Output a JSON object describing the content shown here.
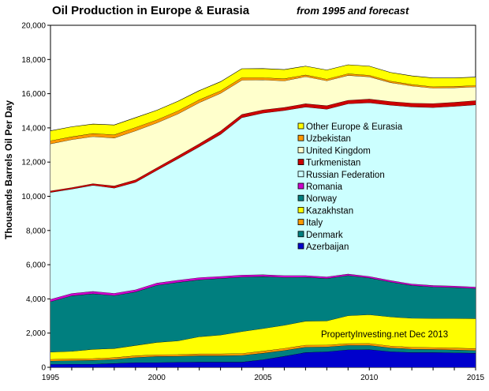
{
  "chart_data": {
    "type": "area",
    "title": "Oil Production in Europe & Eurasia",
    "subtitle": "from 1995 and forecast",
    "xlabel": "",
    "ylabel": "Thousands Barrels Oil Per Day",
    "ylim": [
      0,
      20000
    ],
    "xlim": [
      1995,
      2015
    ],
    "yticks": [
      "0",
      "2,000",
      "4,000",
      "6,000",
      "8,000",
      "10,000",
      "12,000",
      "14,000",
      "16,000",
      "18,000",
      "20,000"
    ],
    "xticks": [
      "1995",
      "2000",
      "2005",
      "2010",
      "2015"
    ],
    "annotation": "PropertyInvesting.net  Dec 2013",
    "legend_position": "center-right",
    "grid": false,
    "x": [
      1995,
      1996,
      1997,
      1998,
      1999,
      2000,
      2001,
      2002,
      2003,
      2004,
      2005,
      2006,
      2007,
      2008,
      2009,
      2010,
      2011,
      2012,
      2013,
      2014,
      2015
    ],
    "series": [
      {
        "name": "Azerbaijan",
        "color": "#0000cc",
        "values": [
          180,
          185,
          185,
          230,
          280,
          280,
          300,
          310,
          310,
          310,
          450,
          650,
          870,
          915,
          1030,
          1040,
          920,
          870,
          870,
          850,
          830
        ]
      },
      {
        "name": "Denmark",
        "color": "#007f7f",
        "values": [
          190,
          210,
          230,
          240,
          300,
          360,
          350,
          370,
          370,
          390,
          380,
          340,
          310,
          280,
          260,
          250,
          220,
          200,
          180,
          170,
          160
        ]
      },
      {
        "name": "Italy",
        "color": "#ff9900",
        "values": [
          100,
          100,
          100,
          100,
          100,
          100,
          100,
          110,
          110,
          110,
          120,
          120,
          120,
          110,
          100,
          110,
          110,
          110,
          110,
          110,
          110
        ]
      },
      {
        "name": "Kazakhstan",
        "color": "#ffff00",
        "values": [
          420,
          440,
          540,
          530,
          600,
          720,
          800,
          1000,
          1100,
          1280,
          1320,
          1350,
          1400,
          1410,
          1630,
          1680,
          1700,
          1690,
          1700,
          1730,
          1750
        ]
      },
      {
        "name": "Norway",
        "color": "#007f7f",
        "values": [
          2950,
          3250,
          3250,
          3100,
          3130,
          3340,
          3420,
          3330,
          3310,
          3190,
          3040,
          2800,
          2570,
          2480,
          2350,
          2150,
          2040,
          1920,
          1840,
          1810,
          1760
        ]
      },
      {
        "name": "Romania",
        "color": "#cc00cc",
        "values": [
          140,
          140,
          140,
          130,
          130,
          130,
          130,
          130,
          120,
          120,
          110,
          110,
          100,
          100,
          90,
          90,
          90,
          90,
          90,
          90,
          90
        ]
      },
      {
        "name": "Russian Federation",
        "color": "#ccffff",
        "values": [
          6250,
          6100,
          6200,
          6150,
          6280,
          6590,
          7100,
          7650,
          8300,
          9200,
          9450,
          9650,
          9850,
          9800,
          9950,
          10150,
          10250,
          10350,
          10400,
          10500,
          10650
        ]
      },
      {
        "name": "Turkmenistan",
        "color": "#cc0000",
        "values": [
          90,
          90,
          100,
          130,
          150,
          150,
          170,
          180,
          200,
          190,
          190,
          180,
          200,
          210,
          210,
          220,
          220,
          220,
          240,
          240,
          250
        ]
      },
      {
        "name": "United Kingdom",
        "color": "#ffffcc",
        "values": [
          2750,
          2800,
          2750,
          2800,
          2860,
          2620,
          2450,
          2400,
          2200,
          2000,
          1750,
          1550,
          1580,
          1450,
          1450,
          1300,
          1100,
          1000,
          900,
          850,
          800
        ]
      },
      {
        "name": "Uzbekistan",
        "color": "#ff9900",
        "values": [
          180,
          170,
          180,
          190,
          200,
          180,
          180,
          170,
          150,
          150,
          130,
          130,
          100,
          100,
          100,
          90,
          90,
          90,
          80,
          80,
          80
        ]
      },
      {
        "name": "Other Europe & Eurasia",
        "color": "#ffff00",
        "values": [
          580,
          580,
          550,
          570,
          570,
          560,
          560,
          530,
          530,
          520,
          530,
          530,
          510,
          530,
          520,
          530,
          500,
          500,
          510,
          490,
          490
        ]
      }
    ]
  }
}
